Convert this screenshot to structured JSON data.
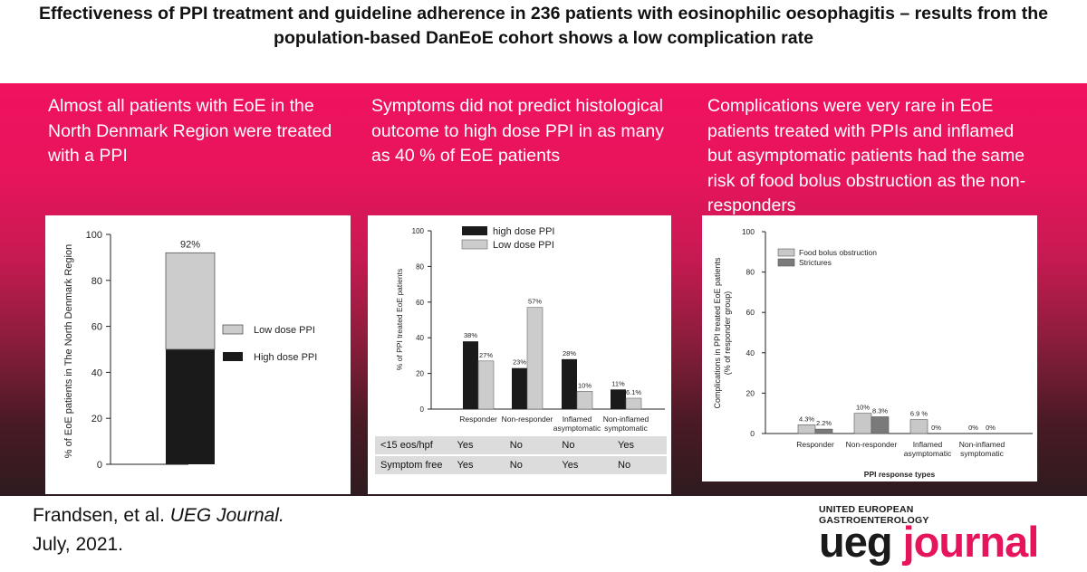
{
  "header": {
    "title_line1": "Effectiveness of PPI treatment and guideline adherence in 236 patients with eosinophilic oesophagitis – results from the",
    "title_line2": "population-based DanEoE cohort shows a low complication rate"
  },
  "captions": {
    "left": [
      "Almost all patients with EoE in the",
      "North Denmark Region were treated",
      "with a PPI"
    ],
    "middle": [
      "Symptoms did not predict histological",
      "outcome to high dose PPI in as many",
      "as 40 % of EoE patients"
    ],
    "right": [
      "Complications were very rare in EoE",
      "patients treated with PPIs and inflamed",
      "but asymptomatic patients had the same",
      "risk of food bolus obstruction as the non-",
      "responders"
    ]
  },
  "colors": {
    "band_top": "#f0125f",
    "band_bottom": "#2e1b1f",
    "high_dose": "#1a1a1a",
    "low_dose": "#cccccc",
    "food_bolus": "#c8c8c8",
    "strictures": "#7a7a7a",
    "brand": "#e6145c"
  },
  "chart_data": [
    {
      "type": "bar",
      "stacked": true,
      "ylabel": "% of EoE patients in The North Denmark Region",
      "ylim": [
        0,
        100
      ],
      "yticks": [
        0,
        20,
        40,
        60,
        80,
        100
      ],
      "series": [
        {
          "name": "High dose PPI",
          "values": [
            50
          ]
        },
        {
          "name": "Low dose PPI",
          "values": [
            42
          ]
        }
      ],
      "total_label": "92%",
      "legend_position": "right"
    },
    {
      "type": "bar",
      "categories": [
        "Responder",
        "Non-responder",
        "Inflamed asymptomatic",
        "Non-inflamed symptomatic"
      ],
      "category_lines": [
        [
          "Responder"
        ],
        [
          "Non-responder"
        ],
        [
          "Inflamed",
          "asymptomatic"
        ],
        [
          "Non-inflamed",
          "symptomatic"
        ]
      ],
      "ylabel": "% of PPI treated EoE patients",
      "ylim": [
        0,
        100
      ],
      "yticks": [
        0,
        20,
        40,
        60,
        80,
        100
      ],
      "series": [
        {
          "name": "high dose PPI",
          "values": [
            38,
            23,
            28,
            11
          ],
          "labels": [
            "38%",
            "23%",
            "28%",
            "11%"
          ]
        },
        {
          "name": "Low dose PPI",
          "values": [
            27,
            57,
            10,
            6.1
          ],
          "labels": [
            "27%",
            "57%",
            "10%",
            "6.1%"
          ]
        }
      ],
      "legend_position": "top-left",
      "table": [
        {
          "label": "<15 eos/hpf",
          "cells": [
            "Yes",
            "No",
            "No",
            "Yes"
          ]
        },
        {
          "label": "Symptom free",
          "cells": [
            "Yes",
            "No",
            "Yes",
            "No"
          ]
        }
      ]
    },
    {
      "type": "bar",
      "categories": [
        "Responder",
        "Non-responder",
        "Inflamed asymptomatic",
        "Non-inflamed symptomatic"
      ],
      "category_lines": [
        [
          "Responder"
        ],
        [
          "Non-responder"
        ],
        [
          "Inflamed",
          "asymptomatic"
        ],
        [
          "Non-inflamed",
          "symptomatic"
        ]
      ],
      "xlabel": "PPI response types",
      "ylabel_lines": [
        "Complications in PPI treated EoE patients",
        "(% of responder group)"
      ],
      "ylim": [
        0,
        100
      ],
      "yticks": [
        0,
        20,
        40,
        60,
        80,
        100
      ],
      "series": [
        {
          "name": "Food bolus obstruction",
          "values": [
            4.3,
            10,
            6.9,
            0
          ],
          "labels": [
            "4.3%",
            "10%",
            "6.9 %",
            "0%"
          ]
        },
        {
          "name": "Strictures",
          "values": [
            2.2,
            8.3,
            0,
            0
          ],
          "labels": [
            "2.2%",
            "8.3%",
            "0%",
            "0%"
          ]
        }
      ],
      "legend_position": "top-left"
    }
  ],
  "footer": {
    "citation_prefix": "Frandsen, et al. ",
    "journal": "UEG Journal.",
    "date": "July, 2021.",
    "logo_line1": "UNITED EUROPEAN",
    "logo_line2": "GASTROENTEROLOGY",
    "logo_word1": "ueg",
    "logo_word2": "journal"
  }
}
